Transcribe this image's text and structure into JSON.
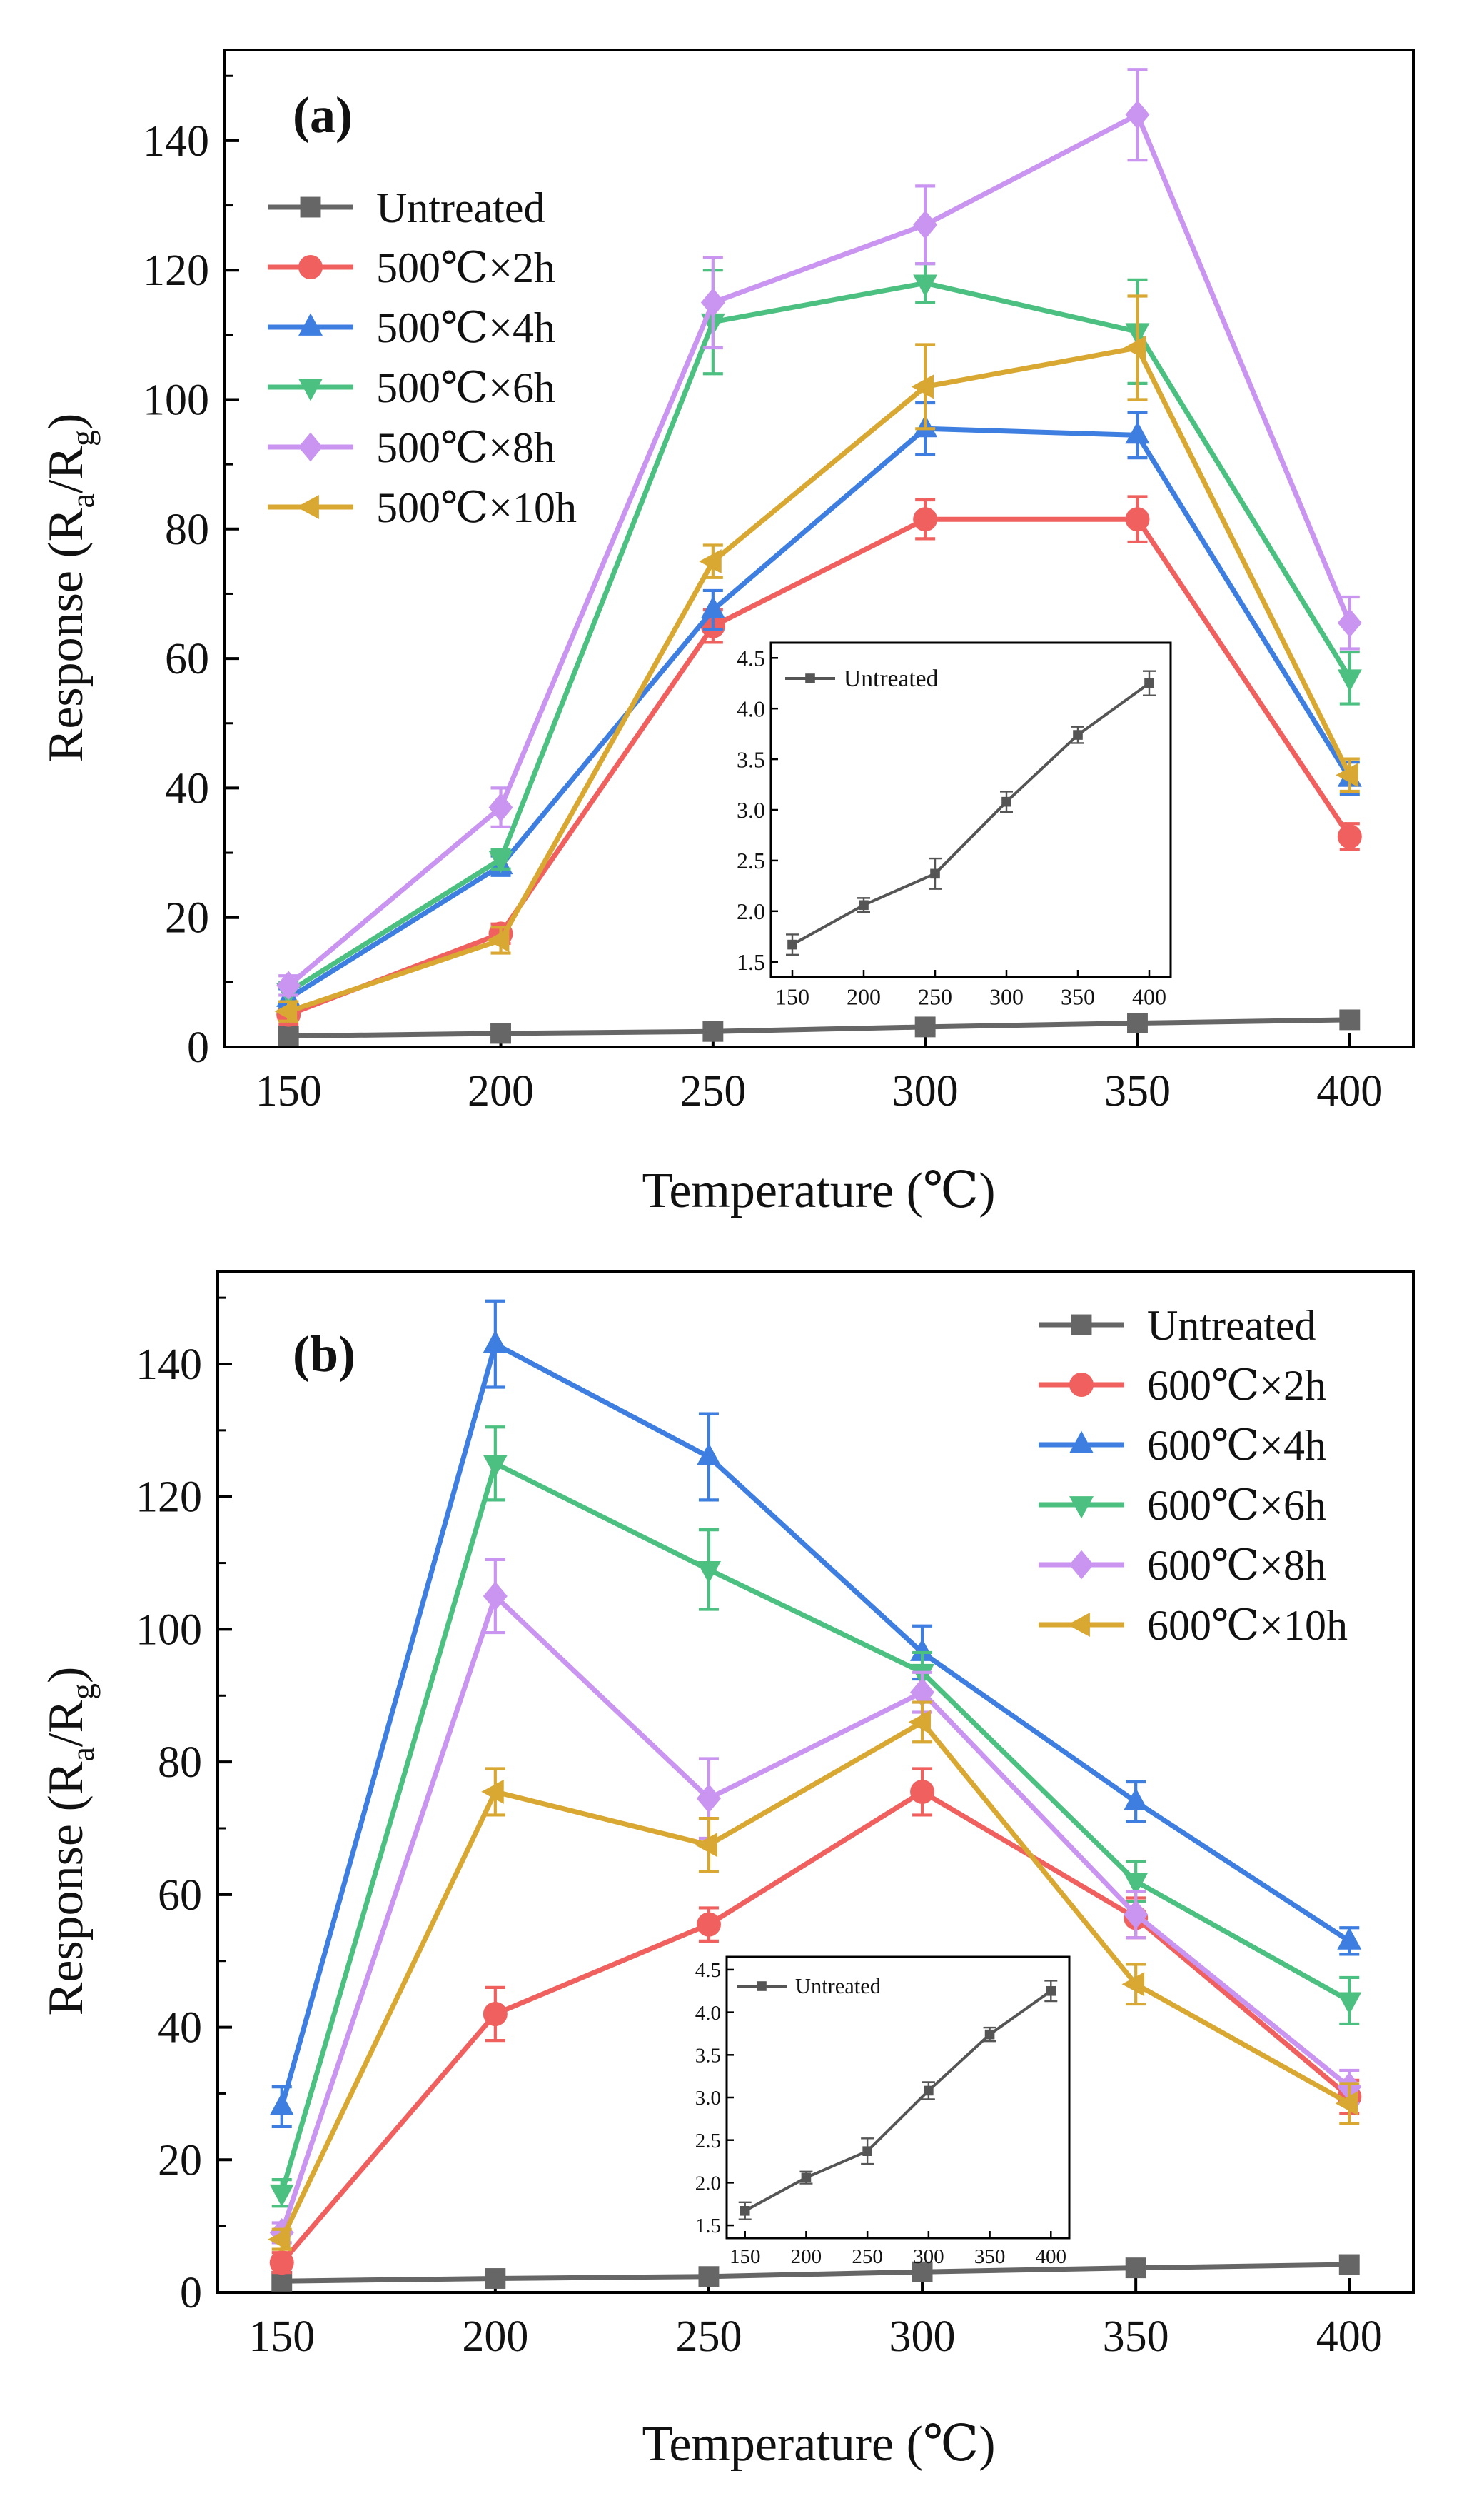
{
  "figure": {
    "panels": [
      {
        "label": "(a)",
        "xlabel": "Temperature (℃)",
        "ylabel_main": "Response (R",
        "ylabel_sub_a": "a",
        "ylabel_mid": "/R",
        "ylabel_sub_g": "g",
        "ylabel_end": ")",
        "legend_position": "top-left"
      },
      {
        "label": "(b)",
        "xlabel": "Temperature (℃)",
        "ylabel_main": "Response (R",
        "ylabel_sub_a": "a",
        "ylabel_mid": "/R",
        "ylabel_sub_g": "g",
        "ylabel_end": ")",
        "legend_position": "top-right"
      }
    ]
  },
  "chart_data": [
    {
      "type": "line",
      "title": "(a)",
      "xlabel": "Temperature (℃)",
      "ylabel": "Response (Ra/Rg)",
      "x": [
        150,
        200,
        250,
        300,
        350,
        400
      ],
      "xticks": [
        150,
        200,
        250,
        300,
        350,
        400
      ],
      "xlim": [
        135,
        415
      ],
      "ylim": [
        0,
        154
      ],
      "yticks": [
        0,
        20,
        40,
        60,
        80,
        100,
        120,
        140
      ],
      "series": [
        {
          "name": "Untreated",
          "color": "#666666",
          "marker": "square",
          "values": [
            1.7,
            2.1,
            2.4,
            3.1,
            3.7,
            4.2
          ],
          "errors": [
            0.5,
            0.5,
            0.5,
            0.5,
            0.5,
            0.5
          ]
        },
        {
          "name": "500℃×2h",
          "color": "#f0605f",
          "marker": "circle",
          "values": [
            5,
            17.5,
            65,
            81.5,
            81.5,
            32.5
          ],
          "errors": [
            1.5,
            1.5,
            2.5,
            3,
            3.5,
            2
          ]
        },
        {
          "name": "500℃×4h",
          "color": "#3d7ee0",
          "marker": "triangle-up",
          "values": [
            7.5,
            28,
            67.5,
            95.5,
            94.5,
            41.5
          ],
          "errors": [
            1.5,
            1.5,
            3,
            4,
            3.5,
            2.5
          ]
        },
        {
          "name": "500℃×6h",
          "color": "#4cc080",
          "marker": "triangle-down",
          "values": [
            8.5,
            29,
            112,
            118,
            110.5,
            57
          ],
          "errors": [
            1.5,
            1.5,
            8,
            3,
            8,
            4
          ]
        },
        {
          "name": "500℃×8h",
          "color": "#c995f0",
          "marker": "diamond",
          "values": [
            9.5,
            37,
            115,
            127,
            144,
            65.5
          ],
          "errors": [
            1.5,
            3,
            7,
            6,
            7,
            4
          ]
        },
        {
          "name": "500℃×10h",
          "color": "#d8a832",
          "marker": "triangle-left",
          "values": [
            5.5,
            16.5,
            75,
            102,
            108,
            42
          ],
          "errors": [
            1.5,
            2,
            2.5,
            6.5,
            8,
            2.5
          ]
        }
      ],
      "inset": {
        "type": "line",
        "legend": "Untreated",
        "x": [
          150,
          200,
          250,
          300,
          350,
          400
        ],
        "values": [
          1.67,
          2.06,
          2.37,
          3.08,
          3.74,
          4.25
        ],
        "errors": [
          0.1,
          0.07,
          0.15,
          0.1,
          0.08,
          0.12
        ],
        "xticks": [
          150,
          200,
          250,
          300,
          350,
          400
        ],
        "yticks": [
          1.5,
          2.0,
          2.5,
          3.0,
          3.5,
          4.0,
          4.5
        ],
        "ytick_labels": [
          "1.5",
          "2.0",
          "2.5",
          "3.0",
          "3.5",
          "4.0",
          "4.5"
        ],
        "xlim": [
          135,
          415
        ],
        "ylim": [
          1.35,
          4.65
        ]
      }
    },
    {
      "type": "line",
      "title": "(b)",
      "xlabel": "Temperature (℃)",
      "ylabel": "Response (Ra/Rg)",
      "x": [
        150,
        200,
        250,
        300,
        350,
        400
      ],
      "xticks": [
        150,
        200,
        250,
        300,
        350,
        400
      ],
      "xlim": [
        135,
        415
      ],
      "ylim": [
        0,
        154
      ],
      "yticks": [
        0,
        20,
        40,
        60,
        80,
        100,
        120,
        140
      ],
      "series": [
        {
          "name": "Untreated",
          "color": "#666666",
          "marker": "square",
          "values": [
            1.7,
            2.1,
            2.4,
            3.1,
            3.7,
            4.2
          ],
          "errors": [
            0.5,
            0.5,
            0.5,
            0.5,
            0.5,
            0.5
          ]
        },
        {
          "name": "600℃×2h",
          "color": "#f0605f",
          "marker": "circle",
          "values": [
            4.5,
            42,
            55.5,
            75.5,
            56.5,
            29.5
          ],
          "errors": [
            1.5,
            4,
            2.5,
            3.5,
            3,
            2.5
          ]
        },
        {
          "name": "600℃×4h",
          "color": "#3d7ee0",
          "marker": "triangle-up",
          "values": [
            28,
            143,
            126,
            96.5,
            74,
            53
          ],
          "errors": [
            3,
            6.5,
            6.5,
            4,
            3,
            2
          ]
        },
        {
          "name": "600℃×6h",
          "color": "#4cc080",
          "marker": "triangle-down",
          "values": [
            15,
            125,
            109,
            93.5,
            62,
            44
          ],
          "errors": [
            2,
            5.5,
            6,
            3,
            3,
            3.5
          ]
        },
        {
          "name": "600℃×8h",
          "color": "#c995f0",
          "marker": "diamond",
          "values": [
            9,
            105,
            74.5,
            90.5,
            57,
            31
          ],
          "errors": [
            1.5,
            5.5,
            6,
            3,
            3.5,
            2.5
          ]
        },
        {
          "name": "600℃×10h",
          "color": "#d8a832",
          "marker": "triangle-left",
          "values": [
            8,
            75.5,
            67.5,
            86,
            46.5,
            28.5
          ],
          "errors": [
            1.5,
            3.5,
            4,
            3,
            3,
            3
          ]
        }
      ],
      "inset": {
        "type": "line",
        "legend": "Untreated",
        "x": [
          150,
          200,
          250,
          300,
          350,
          400
        ],
        "values": [
          1.67,
          2.06,
          2.37,
          3.08,
          3.74,
          4.25
        ],
        "errors": [
          0.1,
          0.07,
          0.15,
          0.1,
          0.08,
          0.12
        ],
        "xticks": [
          150,
          200,
          250,
          300,
          350,
          400
        ],
        "yticks": [
          1.5,
          2.0,
          2.5,
          3.0,
          3.5,
          4.0,
          4.5
        ],
        "ytick_labels": [
          "1.5",
          "2.0",
          "2.5",
          "3.0",
          "3.5",
          "4.0",
          "4.5"
        ],
        "xlim": [
          135,
          415
        ],
        "ylim": [
          1.35,
          4.65
        ]
      }
    }
  ]
}
